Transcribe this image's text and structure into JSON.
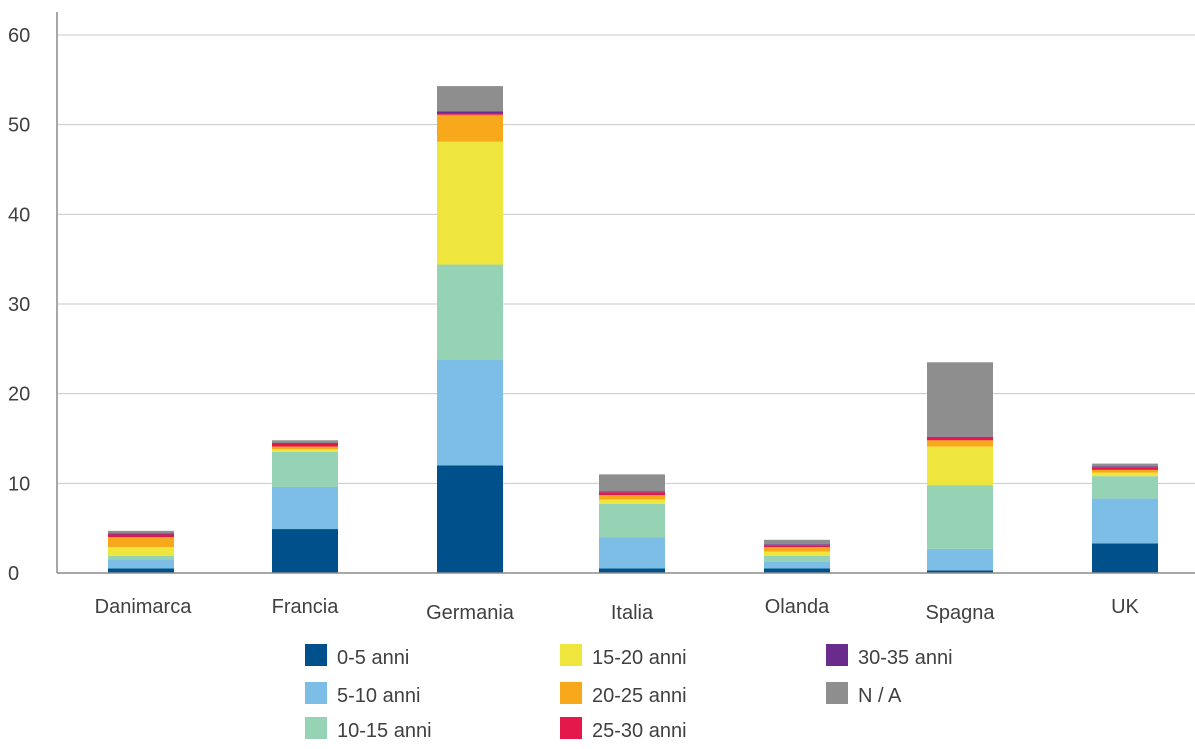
{
  "chart_data": {
    "type": "bar",
    "stacked": true,
    "categories": [
      "Danimarca",
      "Francia",
      "Germania",
      "Italia",
      "Olanda",
      "Spagna",
      "UK"
    ],
    "ylim": [
      0,
      60
    ],
    "yticks": [
      0,
      10,
      20,
      30,
      40,
      50,
      60
    ],
    "grid": true,
    "legend_position": "bottom",
    "series": [
      {
        "name": "0-5 anni",
        "color": "#00508c",
        "values": [
          0.5,
          4.9,
          12.0,
          0.5,
          0.5,
          0.3,
          3.3
        ]
      },
      {
        "name": "5-10 anni",
        "color": "#7dbee6",
        "values": [
          1.0,
          4.7,
          11.8,
          3.5,
          0.8,
          2.4,
          5.0
        ]
      },
      {
        "name": "10-15 anni",
        "color": "#96d2b4",
        "values": [
          0.4,
          3.9,
          10.6,
          3.7,
          0.6,
          7.1,
          2.5
        ]
      },
      {
        "name": "15-20 anni",
        "color": "#eee63c",
        "values": [
          1.0,
          0.3,
          13.7,
          0.5,
          0.5,
          4.3,
          0.4
        ]
      },
      {
        "name": "20-25 anni",
        "color": "#f7a81b",
        "values": [
          1.1,
          0.3,
          3.0,
          0.5,
          0.5,
          0.7,
          0.3
        ]
      },
      {
        "name": "25-30 anni",
        "color": "#e4184b",
        "values": [
          0.3,
          0.3,
          0.2,
          0.3,
          0.2,
          0.3,
          0.3
        ]
      },
      {
        "name": "30-35 anni",
        "color": "#6a2c8c",
        "values": [
          0.1,
          0.1,
          0.2,
          0.1,
          0.1,
          0.1,
          0.1
        ]
      },
      {
        "name": "N / A",
        "color": "#8e8e8e",
        "values": [
          0.3,
          0.3,
          2.8,
          1.9,
          0.5,
          8.3,
          0.3
        ]
      }
    ]
  }
}
